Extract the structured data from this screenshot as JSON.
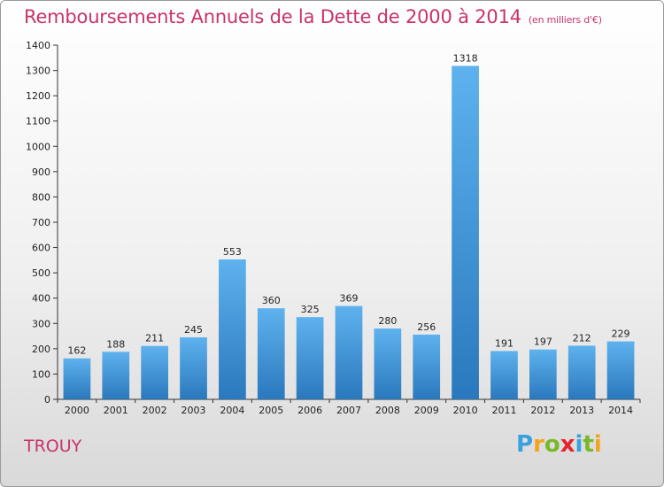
{
  "chart_data": {
    "type": "bar",
    "title": "Remboursements Annuels de la Dette de 2000 à 2014",
    "subtitle": "(en milliers d'€)",
    "xlabel": "",
    "ylabel": "",
    "categories": [
      "2000",
      "2001",
      "2002",
      "2003",
      "2004",
      "2005",
      "2006",
      "2007",
      "2008",
      "2009",
      "2010",
      "2011",
      "2012",
      "2013",
      "2014"
    ],
    "values": [
      162,
      188,
      211,
      245,
      553,
      360,
      325,
      369,
      280,
      256,
      1318,
      191,
      197,
      212,
      229
    ],
    "ylim": [
      0,
      1400
    ],
    "yticks": [
      0,
      100,
      200,
      300,
      400,
      500,
      600,
      700,
      800,
      900,
      1000,
      1100,
      1200,
      1300,
      1400
    ],
    "grid": false,
    "bar_color": "#3d8fd8"
  },
  "footer": {
    "commune": "TROUY",
    "logo_letters": [
      "P",
      "r",
      "o",
      "x",
      "i",
      "t",
      "i"
    ],
    "logo_colors": [
      "#3aa1e0",
      "#f2a51c",
      "#79b82b",
      "#e3262c",
      "#3aa1e0",
      "#79b82b",
      "#f2a51c"
    ]
  }
}
